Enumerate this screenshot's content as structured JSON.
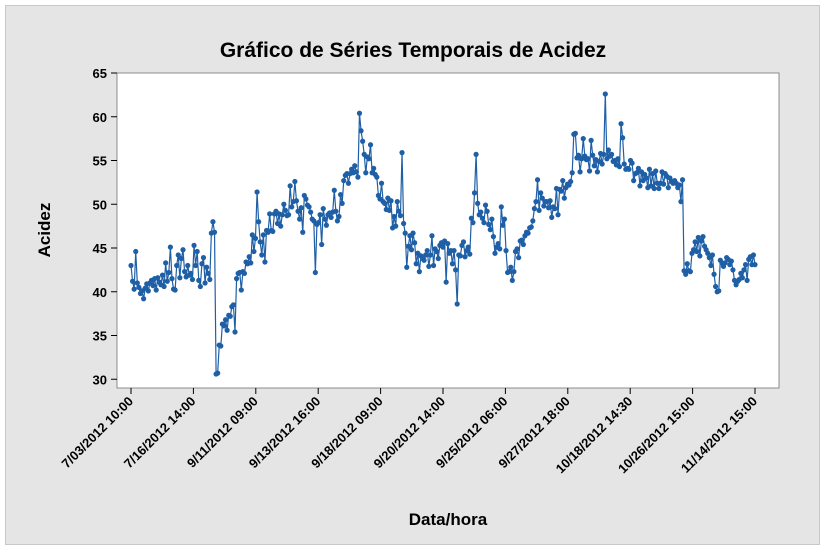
{
  "chart_data": {
    "type": "line",
    "title": "Gráfico de Séries Temporais de Acidez",
    "xlabel": "Data/hora",
    "ylabel": "Acidez",
    "ylim": [
      29,
      65
    ],
    "yticks": [
      30,
      35,
      40,
      45,
      50,
      55,
      60,
      65
    ],
    "xtick_labels": [
      "7/03/2012 10:00",
      "7/16/2012 14:00",
      "9/11/2012 09:00",
      "9/13/2012 16:00",
      "9/18/2012 09:00",
      "9/20/2012 14:00",
      "9/25/2012 06:00",
      "9/27/2012 18:00",
      "10/18/2012 14:30",
      "10/26/2012 15:00",
      "11/14/2012 15:00"
    ],
    "grid": false,
    "series_color": "#1f5fa6",
    "series": [
      {
        "values": [
          43.0,
          41.2,
          40.3,
          44.6,
          41.0,
          40.5,
          39.8,
          40.1,
          39.2,
          40.4,
          40.9,
          40.1,
          41.0,
          41.3,
          40.7,
          41.5,
          40.2,
          41.6,
          41.1,
          40.8,
          41.9,
          40.6,
          43.3,
          41.2,
          42.2,
          45.1,
          41.5,
          40.3,
          40.2,
          43.0,
          44.2,
          41.6,
          43.8,
          44.8,
          42.3,
          41.7,
          43.0,
          41.9,
          42.1,
          41.4,
          45.3,
          43.0,
          44.6,
          41.3,
          40.6,
          43.2,
          43.9,
          41.0,
          42.8,
          42.1,
          41.4,
          46.7,
          48.0,
          46.8,
          30.6,
          30.7,
          33.9,
          33.8,
          36.3,
          36.1,
          36.8,
          35.6,
          37.3,
          37.2,
          38.3,
          38.5,
          35.4,
          41.5,
          42.1,
          42.2,
          40.2,
          42.3,
          42.1,
          43.4,
          43.2,
          44.0,
          43.3,
          46.5,
          44.6,
          46.1,
          51.4,
          48.0,
          45.7,
          44.2,
          46.5,
          43.4,
          47.0,
          46.8,
          48.9,
          47.0,
          46.9,
          48.9,
          49.2,
          47.8,
          48.9,
          47.5,
          48.8,
          50.0,
          49.3,
          48.7,
          48.8,
          52.1,
          49.7,
          50.3,
          52.6,
          50.4,
          49.2,
          48.3,
          49.6,
          46.8,
          51.0,
          50.6,
          49.9,
          49.7,
          49.1,
          48.3,
          48.1,
          42.2,
          47.7,
          47.9,
          48.8,
          45.4,
          49.5,
          48.3,
          47.6,
          48.8,
          49.0,
          48.5,
          49.1,
          51.6,
          49.2,
          48.1,
          48.6,
          51.1,
          50.1,
          52.7,
          53.3,
          53.5,
          52.4,
          53.5,
          54.0,
          53.6,
          54.4,
          53.7,
          53.1,
          60.4,
          58.4,
          57.2,
          55.7,
          53.6,
          55.4,
          55.2,
          56.8,
          53.6,
          54.1,
          53.4,
          53.1,
          51.0,
          50.6,
          52.4,
          50.3,
          50.1,
          49.4,
          50.7,
          49.3,
          50.4,
          47.3,
          48.6,
          47.5,
          50.3,
          49.2,
          48.7,
          55.9,
          47.8,
          46.7,
          42.8,
          45.2,
          46.4,
          44.8,
          46.7,
          45.6,
          43.2,
          44.4,
          42.3,
          44.1,
          43.8,
          43.6,
          44.2,
          44.7,
          42.9,
          44.2,
          46.4,
          43.0,
          44.9,
          44.6,
          43.8,
          45.3,
          45.6,
          45.1,
          45.8,
          41.1,
          45.5,
          44.4,
          44.7,
          43.2,
          44.7,
          42.5,
          38.6,
          44.2,
          44.1,
          45.3,
          45.7,
          44.0,
          44.7,
          45.1,
          44.3,
          48.4,
          47.9,
          51.3,
          55.7,
          50.1,
          48.8,
          49.1,
          48.4,
          47.9,
          49.9,
          49.2,
          47.7,
          47.1,
          48.3,
          46.3,
          44.4,
          45.1,
          45.5,
          44.9,
          49.7,
          47.6,
          48.3,
          44.7,
          42.2,
          42.3,
          42.8,
          41.3,
          42.3,
          44.6,
          44.9,
          43.9,
          45.8,
          45.9,
          45.4,
          46.4,
          46.8,
          46.7,
          47.3,
          47.4,
          48.1,
          49.5,
          50.3,
          52.8,
          49.3,
          51.3,
          50.7,
          49.8,
          50.3,
          50.3,
          49.6,
          50.4,
          48.5,
          49.7,
          49.5,
          51.8,
          48.8,
          51.7,
          51.5,
          52.7,
          50.7,
          51.9,
          52.3,
          52.2,
          52.6,
          53.6,
          58.0,
          58.1,
          55.3,
          55.6,
          53.7,
          55.2,
          57.5,
          55.5,
          55.1,
          55.2,
          53.8,
          57.3,
          55.6,
          54.4,
          55.1,
          53.7,
          54.9,
          55.8,
          54.6,
          55.7,
          62.6,
          55.2,
          56.2,
          55.5,
          55.7,
          54.9,
          55.0,
          54.5,
          55.2,
          54.3,
          59.2,
          57.6,
          54.6,
          54.0,
          54.1,
          54.0,
          55.0,
          54.7,
          52.7,
          53.5,
          53.6,
          54.1,
          52.1,
          53.7,
          52.7,
          53.4,
          53.0,
          51.9,
          54.0,
          52.1,
          53.5,
          51.8,
          53.8,
          52.4,
          51.8,
          52.4,
          53.7,
          52.3,
          53.5,
          53.2,
          51.9,
          53.0,
          52.6,
          52.4,
          52.7,
          52.4,
          51.9,
          52.2,
          50.3,
          52.8,
          42.4,
          42.0,
          43.2,
          42.4,
          42.3,
          44.4,
          44.8,
          45.7,
          44.6,
          46.2,
          44.1,
          45.8,
          46.3,
          45.2,
          44.8,
          44.4,
          43.9,
          43.0,
          44.2,
          42.0,
          40.6,
          40.0,
          40.1,
          43.6,
          43.3,
          42.9,
          43.3,
          43.9,
          43.7,
          43.1,
          43.5,
          42.5,
          41.3,
          40.8,
          41.2,
          41.4,
          42.1,
          41.6,
          42.5,
          43.1,
          41.3,
          43.7,
          44.0,
          43.1,
          44.2,
          43.1
        ]
      }
    ]
  }
}
